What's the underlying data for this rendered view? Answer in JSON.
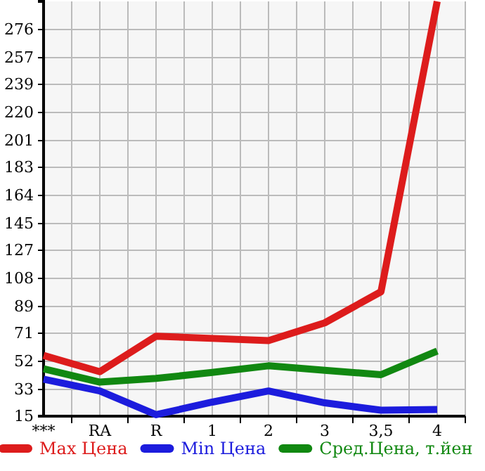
{
  "chart_data": {
    "type": "line",
    "categories": [
      "***",
      "RA",
      "R",
      "1",
      "2",
      "3",
      "3,5",
      "4"
    ],
    "series": [
      {
        "name": "Max Цена",
        "color": "#dd1c1c",
        "values": [
          56,
          45,
          69,
          67.5,
          66,
          78,
          99,
          295
        ]
      },
      {
        "name": "Min Цена",
        "color": "#1c1cdd",
        "values": [
          40,
          32,
          16,
          24.5,
          32,
          24,
          19,
          19.5
        ]
      },
      {
        "name": "Сред.Цена, т.йен",
        "color": "#118811",
        "values": [
          47,
          38,
          40.5,
          44.5,
          49,
          46,
          43,
          59
        ]
      }
    ],
    "ylim": [
      15,
      295
    ],
    "yticks": [
      15,
      33,
      52,
      71,
      89,
      108,
      127,
      145,
      164,
      183,
      201,
      220,
      239,
      257,
      276
    ],
    "grid": true,
    "legend": "bottom",
    "marker": "none",
    "line_style": "solid"
  }
}
